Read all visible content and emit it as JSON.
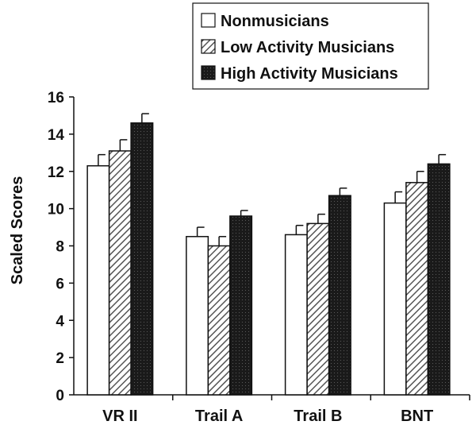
{
  "chart_data": {
    "type": "bar",
    "categories": [
      "VR II",
      "Trail A",
      "Trail B",
      "BNT"
    ],
    "series": [
      {
        "name": "Nonmusicians",
        "values": [
          12.3,
          8.5,
          8.6,
          10.3
        ],
        "errors": [
          0.6,
          0.5,
          0.5,
          0.6
        ],
        "fill": "white"
      },
      {
        "name": "Low Activity Musicians",
        "values": [
          13.1,
          8.0,
          9.2,
          11.4
        ],
        "errors": [
          0.6,
          0.5,
          0.5,
          0.6
        ],
        "fill": "hatch"
      },
      {
        "name": "High Activity Musicians",
        "values": [
          14.6,
          9.6,
          10.7,
          12.4
        ],
        "errors": [
          0.5,
          0.3,
          0.4,
          0.5
        ],
        "fill": "dark"
      }
    ],
    "title": "",
    "xlabel": "",
    "ylabel": "Scaled Scores",
    "ylim": [
      0,
      16
    ],
    "yticks": [
      0,
      2,
      4,
      6,
      8,
      10,
      12,
      14,
      16
    ],
    "grid": false,
    "legend_position": "top-right",
    "colors": {
      "dark": "#1a1a1a",
      "hatch_line": "#555555",
      "outline": "#111111"
    }
  }
}
